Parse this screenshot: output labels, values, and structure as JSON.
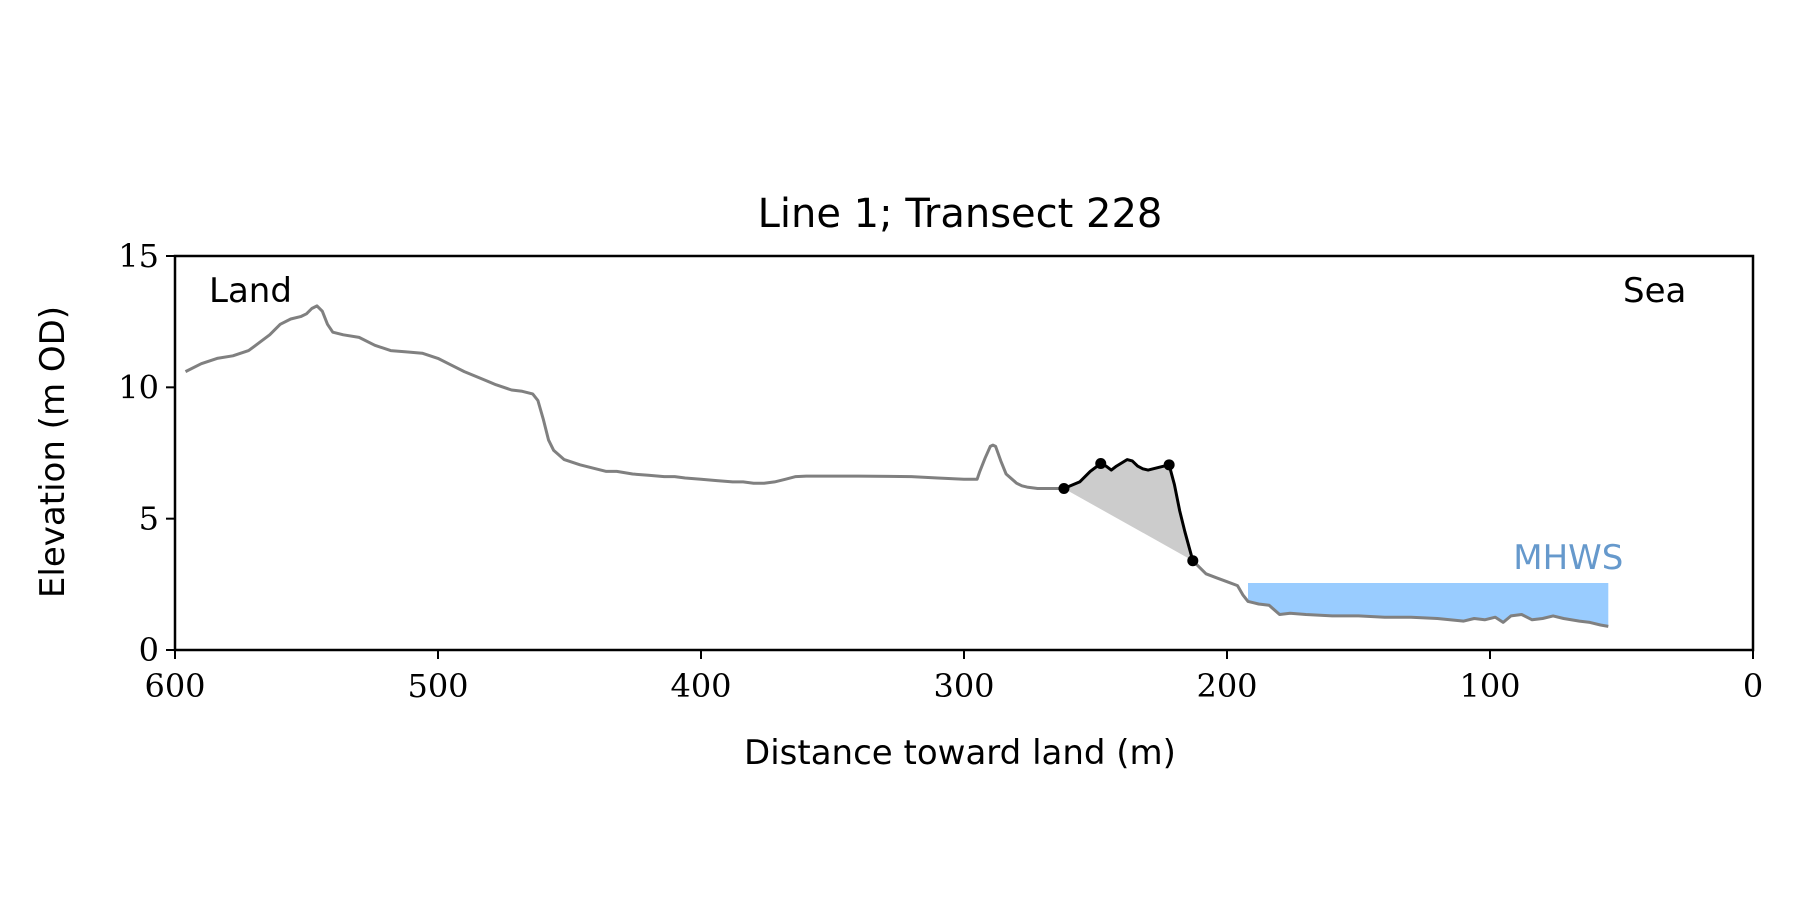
{
  "chart_data": {
    "type": "line",
    "title": "Line 1; Transect 228",
    "xlabel": "Distance toward land (m)",
    "ylabel": "Elevation (m OD)",
    "xlim": [
      600,
      0
    ],
    "ylim": [
      0,
      15
    ],
    "x_ticks": [
      600,
      500,
      400,
      300,
      200,
      100,
      0
    ],
    "y_ticks": [
      0,
      5,
      10,
      15
    ],
    "grid": false,
    "annotations": {
      "land": "Land",
      "sea": "Sea",
      "mhws": "MHWS"
    },
    "colors": {
      "profile": "#808080",
      "dune": "#000000",
      "fill": "#cccccc",
      "mhws": "#99ccff",
      "mhws_text": "#6699cc"
    },
    "profile": {
      "x": [
        596,
        590,
        584,
        578,
        572,
        568,
        564,
        560,
        556,
        552,
        550,
        548,
        546,
        544,
        542,
        540,
        536,
        530,
        524,
        518,
        512,
        506,
        500,
        496,
        490,
        484,
        478,
        472,
        468,
        464,
        462,
        460,
        458,
        456,
        452,
        446,
        440,
        436,
        432,
        426,
        420,
        414,
        410,
        406,
        400,
        394,
        388,
        384,
        380,
        376,
        372,
        368,
        364,
        360,
        340,
        320,
        310,
        300,
        295,
        294,
        292,
        290,
        289,
        288,
        286,
        284,
        280,
        278,
        276,
        272,
        268,
        262
      ],
      "y": [
        10.6,
        10.9,
        11.1,
        11.2,
        11.4,
        11.7,
        12.0,
        12.4,
        12.6,
        12.7,
        12.8,
        13.0,
        13.1,
        12.9,
        12.4,
        12.1,
        12.0,
        11.9,
        11.6,
        11.4,
        11.35,
        11.3,
        11.1,
        10.9,
        10.6,
        10.35,
        10.1,
        9.9,
        9.85,
        9.75,
        9.5,
        8.8,
        8.0,
        7.6,
        7.25,
        7.05,
        6.9,
        6.8,
        6.8,
        6.7,
        6.65,
        6.6,
        6.6,
        6.55,
        6.5,
        6.45,
        6.4,
        6.4,
        6.35,
        6.35,
        6.4,
        6.5,
        6.6,
        6.62,
        6.62,
        6.6,
        6.55,
        6.5,
        6.5,
        6.8,
        7.3,
        7.75,
        7.8,
        7.75,
        7.2,
        6.7,
        6.35,
        6.25,
        6.2,
        6.15,
        6.15,
        6.15
      ]
    },
    "dune": {
      "x": [
        262,
        256,
        252,
        248,
        246,
        244,
        242,
        238,
        236,
        234,
        232,
        230,
        226,
        222,
        220,
        218,
        216,
        213
      ],
      "y": [
        6.15,
        6.4,
        6.8,
        7.1,
        7.0,
        6.85,
        7.0,
        7.25,
        7.2,
        7.0,
        6.9,
        6.85,
        6.95,
        7.05,
        6.3,
        5.3,
        4.5,
        3.4
      ]
    },
    "dune_points": {
      "x": [
        262,
        248,
        222,
        213
      ],
      "y": [
        6.15,
        7.1,
        7.05,
        3.4
      ]
    },
    "beach": {
      "x": [
        213,
        208,
        204,
        200,
        196,
        194,
        192,
        190,
        188,
        184,
        180,
        176,
        170,
        160,
        150,
        140,
        130,
        120,
        110,
        106,
        102,
        98,
        95,
        92,
        88,
        84,
        80,
        76,
        72,
        66,
        62,
        58,
        55
      ],
      "y": [
        3.4,
        2.9,
        2.75,
        2.6,
        2.45,
        2.1,
        1.85,
        1.8,
        1.75,
        1.7,
        1.35,
        1.4,
        1.35,
        1.3,
        1.3,
        1.25,
        1.25,
        1.2,
        1.1,
        1.2,
        1.15,
        1.25,
        1.05,
        1.3,
        1.35,
        1.15,
        1.2,
        1.3,
        1.2,
        1.1,
        1.05,
        0.95,
        0.9
      ]
    },
    "dune_base_line": {
      "x": [
        262,
        213
      ],
      "y": [
        6.15,
        3.4
      ]
    },
    "mhws": {
      "x_start": 192,
      "x_end": 55,
      "level": 2.55
    }
  }
}
